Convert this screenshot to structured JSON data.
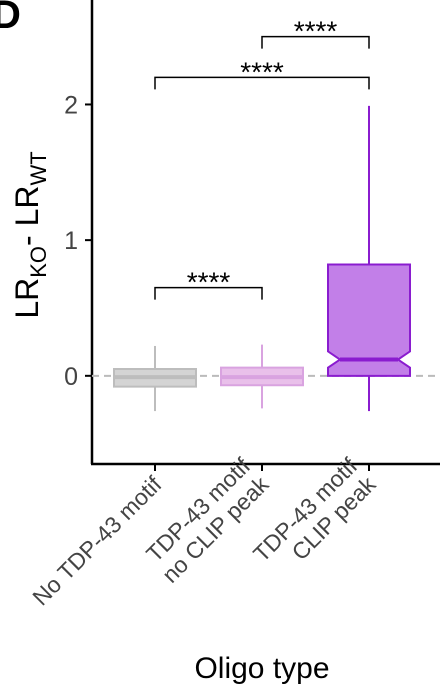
{
  "chart_data": {
    "type": "box",
    "panel_label": "D",
    "ylabel": [
      "LR",
      "KO",
      "- LR",
      "WT"
    ],
    "xlabel": "Oligo type",
    "categories": [
      [
        "No TDP-43 motif"
      ],
      [
        "TDP-43 motif",
        "no CLIP peak"
      ],
      [
        "TDP-43 motif",
        "CLIP peak"
      ]
    ],
    "boxes": [
      {
        "min": -0.26,
        "q1": -0.08,
        "median": -0.01,
        "q3": 0.05,
        "max": 0.22,
        "fill": "#d4d4d4",
        "color": "#bdbdbd"
      },
      {
        "min": -0.24,
        "q1": -0.07,
        "median": -0.01,
        "q3": 0.06,
        "max": 0.23,
        "fill": "#e9c0ea",
        "color": "#d9a3e0"
      },
      {
        "min": -0.26,
        "q1": 0.0,
        "median": 0.12,
        "q3": 0.82,
        "max": 1.99,
        "notch": [
          0.06,
          0.18
        ],
        "fill": "#c27fe8",
        "color": "#8a1ccf"
      }
    ],
    "reference_line": 0,
    "annotations": [
      {
        "text": "****",
        "from": 0,
        "to": 1,
        "y": 0.65
      },
      {
        "text": "****",
        "from": 0,
        "to": 2,
        "y": 2.2
      },
      {
        "text": "****",
        "from": 1,
        "to": 2,
        "y": 2.5
      }
    ],
    "ylim": [
      -0.65,
      2.77
    ],
    "yticks": [
      0,
      1,
      2
    ]
  }
}
